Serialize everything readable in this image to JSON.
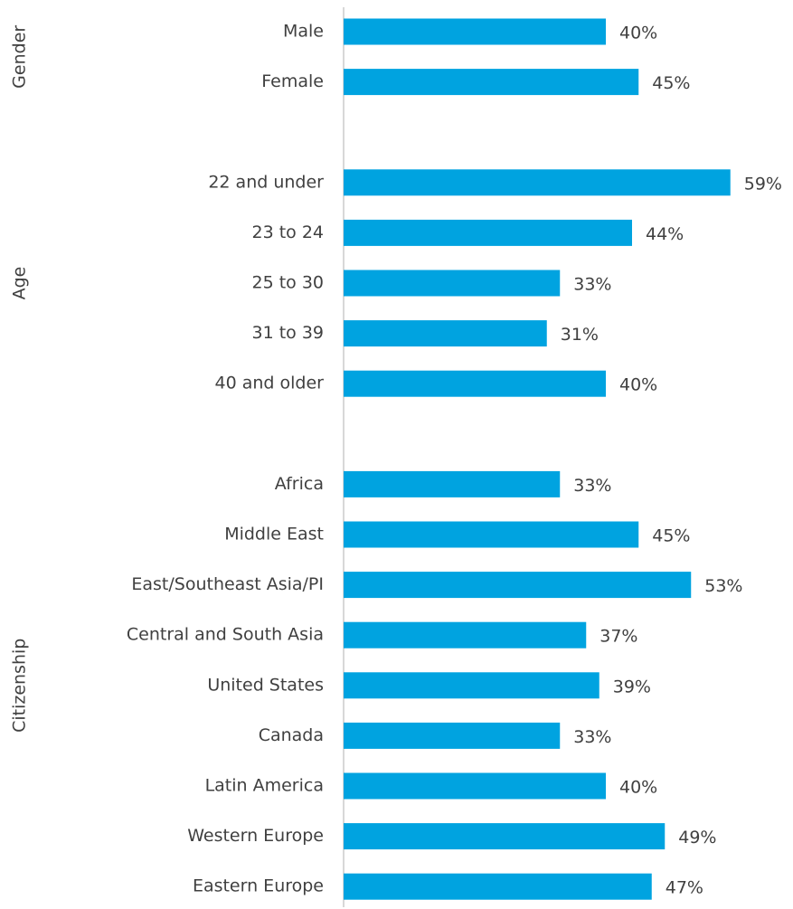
{
  "chart_data": {
    "type": "grouped-hbar",
    "color": "#00a3e0",
    "xlim": [
      0,
      68
    ],
    "groups": [
      {
        "name": "Gender",
        "categories": [
          "Male",
          "Female"
        ],
        "values": [
          40,
          45
        ],
        "value_labels": [
          "40%",
          "45%"
        ]
      },
      {
        "name": "Age",
        "categories": [
          "22 and under",
          "23 to 24",
          "25 to 30",
          "31 to 39",
          "40 and older"
        ],
        "values": [
          59,
          44,
          33,
          31,
          40
        ],
        "value_labels": [
          "59%",
          "44%",
          "33%",
          "31%",
          "40%"
        ]
      },
      {
        "name": "Citizenship",
        "categories": [
          "Africa",
          "Middle East",
          "East/Southeast Asia/PI",
          "Central and South Asia",
          "United States",
          "Canada",
          "Latin America",
          "Western Europe",
          "Eastern Europe"
        ],
        "values": [
          33,
          45,
          53,
          37,
          39,
          33,
          40,
          49,
          47
        ],
        "value_labels": [
          "33%",
          "45%",
          "53%",
          "37%",
          "39%",
          "33%",
          "40%",
          "49%",
          "47%"
        ]
      }
    ]
  }
}
